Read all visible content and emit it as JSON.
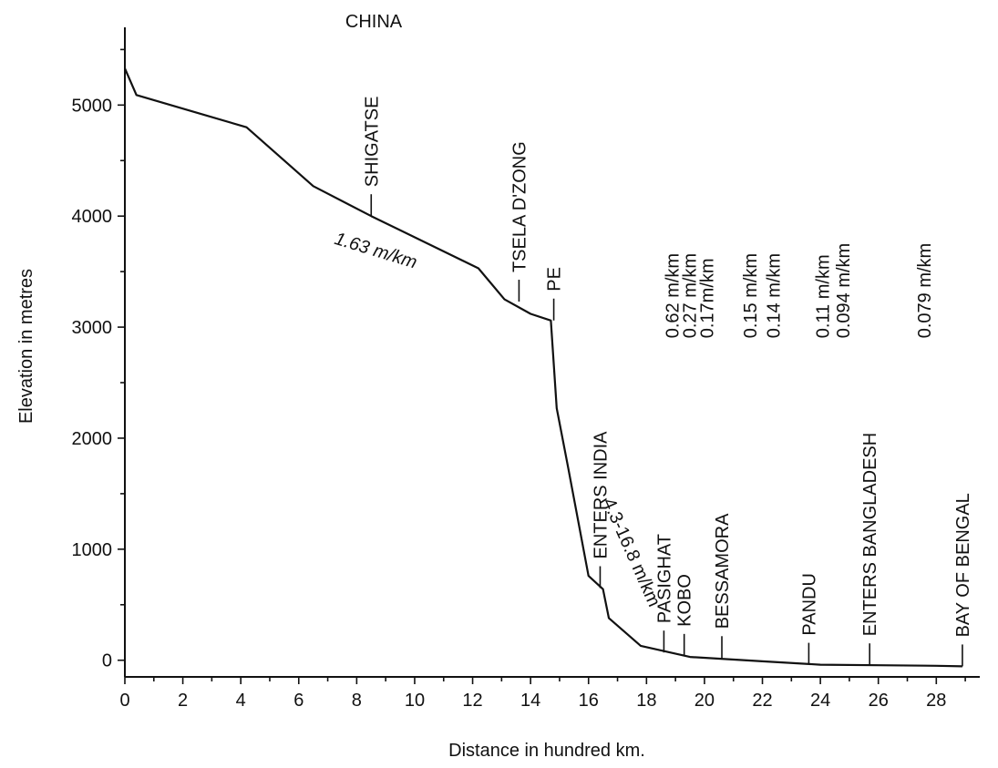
{
  "chart_data": {
    "type": "line",
    "title": "",
    "xlabel": "Distance in hundred km.",
    "ylabel": "Elevation in metres",
    "xlim": [
      0,
      29.5
    ],
    "ylim": [
      -150,
      5700
    ],
    "x_ticks": [
      0,
      2,
      4,
      6,
      8,
      10,
      12,
      14,
      16,
      18,
      20,
      22,
      24,
      26,
      28
    ],
    "y_ticks": [
      0,
      1000,
      2000,
      3000,
      4000,
      5000
    ],
    "grid": false,
    "series": [
      {
        "x": [
          0,
          0.4,
          4.2,
          6.5,
          8.5,
          12.2,
          13.1,
          14.0,
          14.7,
          14.9,
          15.3,
          16.0,
          16.5,
          16.7,
          17.8,
          19.5,
          22,
          24,
          26,
          28,
          28.9
        ],
        "y": [
          5330,
          5090,
          4800,
          4270,
          4000,
          3530,
          3250,
          3120,
          3060,
          2270,
          1730,
          760,
          640,
          380,
          130,
          30,
          -10,
          -40,
          -45,
          -50,
          -55
        ]
      }
    ],
    "top_label": "CHINA",
    "place_markers": [
      {
        "label": "SHIGATSE",
        "x": 8.5,
        "y": 4000
      },
      {
        "label": "TSELA D'ZONG",
        "x": 13.6,
        "y": 3230
      },
      {
        "label": "PE",
        "x": 14.8,
        "y": 3060
      },
      {
        "label": "ENTERS INDIA",
        "x": 16.4,
        "y": 650
      },
      {
        "label": "PASIGHAT",
        "x": 18.6,
        "y": 70
      },
      {
        "label": "KOBO",
        "x": 19.3,
        "y": 40
      },
      {
        "label": "BESSAMORA",
        "x": 20.6,
        "y": 20
      },
      {
        "label": "PANDU",
        "x": 23.6,
        "y": -40
      },
      {
        "label": "ENTERS BANGLADESH",
        "x": 25.7,
        "y": -45
      },
      {
        "label": "BAY OF BENGAL",
        "x": 28.9,
        "y": -55
      }
    ],
    "gradient_labels": [
      {
        "text": "1.63 m/km",
        "x": 8.6,
        "y": 3640,
        "angle": 17,
        "italic": true
      },
      {
        "text": "4.3-16.8 m/km",
        "x": 17.3,
        "y": 950,
        "angle": 66,
        "italic": false
      },
      {
        "text": "0.62 m/km",
        "x": 19.1,
        "y": 2900,
        "angle": -90
      },
      {
        "text": "0.27 m/km",
        "x": 19.7,
        "y": 2900,
        "angle": -90
      },
      {
        "text": "0.17m/km",
        "x": 20.3,
        "y": 2900,
        "angle": -90
      },
      {
        "text": "0.15 m/km",
        "x": 21.8,
        "y": 2900,
        "angle": -90
      },
      {
        "text": "0.14 m/km",
        "x": 22.6,
        "y": 2900,
        "angle": -90
      },
      {
        "text": "0.11 m/km",
        "x": 24.3,
        "y": 2900,
        "angle": -90
      },
      {
        "text": "0.094 m/km",
        "x": 25.0,
        "y": 2900,
        "angle": -90
      },
      {
        "text": "0.079 m/km",
        "x": 27.8,
        "y": 2900,
        "angle": -90
      }
    ],
    "colors": {
      "line": "#111111",
      "axis": "#111111",
      "text": "#111111"
    }
  }
}
